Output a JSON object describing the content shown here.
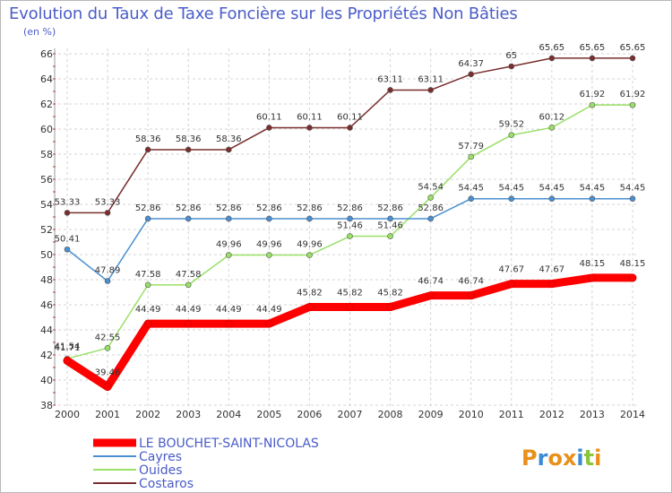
{
  "chart_data": {
    "type": "line",
    "title": "Evolution du Taux de Taxe Foncière sur les Propriétés Non Bâties",
    "subtitle": "(en %)",
    "categories": [
      "2000",
      "2001",
      "2002",
      "2003",
      "2004",
      "2005",
      "2006",
      "2007",
      "2008",
      "2009",
      "2010",
      "2011",
      "2012",
      "2013",
      "2014"
    ],
    "ylim": [
      38,
      66
    ],
    "yticks": [
      38,
      40,
      42,
      44,
      46,
      48,
      50,
      52,
      54,
      56,
      58,
      60,
      62,
      64,
      66
    ],
    "grid": true,
    "series": [
      {
        "name": "LE BOUCHET-SAINT-NICOLAS",
        "color": "#ff0000",
        "values": [
          41.54,
          39.46,
          44.49,
          44.49,
          44.49,
          44.49,
          45.82,
          45.82,
          45.82,
          46.74,
          46.74,
          47.67,
          47.67,
          48.15,
          48.15
        ],
        "labels": [
          "41.54",
          "39.46",
          "44.49",
          "44.49",
          "44.49",
          "44.49",
          "45.82",
          "45.82",
          "45.82",
          "46.74",
          "46.74",
          "47.67",
          "47.67",
          "48.15",
          "48.15"
        ]
      },
      {
        "name": "Cayres",
        "color": "#4a8fd0",
        "values": [
          50.41,
          47.89,
          52.86,
          52.86,
          52.86,
          52.86,
          52.86,
          52.86,
          52.86,
          52.86,
          54.45,
          54.45,
          54.45,
          54.45,
          54.45
        ],
        "labels": [
          "50.41",
          "47.89",
          "52.86",
          "52.86",
          "52.86",
          "52.86",
          "52.86",
          "52.86",
          "52.86",
          "52.86",
          "54.45",
          "54.45",
          "54.45",
          "54.45",
          "54.45"
        ]
      },
      {
        "name": "Ouides",
        "color": "#99e066",
        "values": [
          41.71,
          42.55,
          47.58,
          47.58,
          49.96,
          49.96,
          49.96,
          51.46,
          51.46,
          54.54,
          57.79,
          59.52,
          60.12,
          61.92,
          61.92
        ],
        "labels": [
          "41.71",
          "42.55",
          "47.58",
          "47.58",
          "49.96",
          "49.96",
          "49.96",
          "51.46",
          "51.46",
          "54.54",
          "57.79",
          "59.52",
          "60.12",
          "61.92",
          "61.92"
        ]
      },
      {
        "name": "Costaros",
        "color": "#7a2e2e",
        "values": [
          53.33,
          53.33,
          58.36,
          58.36,
          58.36,
          60.11,
          60.11,
          60.11,
          63.11,
          63.11,
          64.37,
          65,
          65.65,
          65.65,
          65.65
        ],
        "labels": [
          "53.33",
          "53.33",
          "58.36",
          "58.36",
          "58.36",
          "60.11",
          "60.11",
          "60.11",
          "63.11",
          "63.11",
          "64.37",
          "65",
          "65.65",
          "65.65",
          "65.65"
        ]
      }
    ]
  },
  "logo": {
    "text": "Proxiti"
  }
}
